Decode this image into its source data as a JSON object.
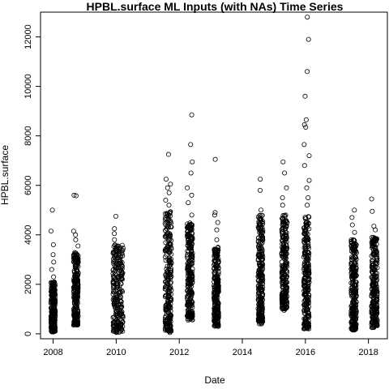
{
  "chart_data": {
    "type": "scatter",
    "title": "HPBL.surface ML Inputs (with NAs) Time Series",
    "xlabel": "Date",
    "ylabel": "HPBL.surface",
    "xlim": [
      2007.6,
      2018.6
    ],
    "ylim": [
      -200,
      13000
    ],
    "x_ticks": [
      2008,
      2010,
      2012,
      2014,
      2016,
      2018
    ],
    "x_tick_labels": [
      "2008",
      "2010",
      "2012",
      "2014",
      "2016",
      "2018"
    ],
    "y_ticks": [
      0,
      2000,
      4000,
      6000,
      8000,
      10000,
      12000
    ],
    "y_tick_labels": [
      "0",
      "2000",
      "4000",
      "6000",
      "8000",
      "10000",
      "12000"
    ],
    "grid": false,
    "marker": "open-circle",
    "point_color": "#000000",
    "clusters": [
      {
        "x_range": [
          2007.93,
          2008.07
        ],
        "y_dense": [
          80,
          2100
        ],
        "outliers": [
          2300,
          2600,
          2900,
          3200,
          3600,
          4150,
          5000
        ]
      },
      {
        "x_range": [
          2008.65,
          2008.8
        ],
        "y_dense": [
          350,
          3300
        ],
        "outliers": [
          3550,
          3800,
          4000,
          4150,
          5580,
          5600
        ]
      },
      {
        "x_range": [
          2009.9,
          2010.22
        ],
        "y_dense": [
          50,
          3600
        ],
        "outliers": [
          3800,
          4050,
          4250,
          4750
        ]
      },
      {
        "x_range": [
          2011.55,
          2011.75
        ],
        "y_dense": [
          100,
          5000
        ],
        "outliers": [
          5200,
          5400,
          5700,
          5900,
          6050,
          6250,
          7250,
          50
        ]
      },
      {
        "x_range": [
          2012.25,
          2012.42
        ],
        "y_dense": [
          550,
          4500
        ],
        "outliers": [
          4800,
          5300,
          5600,
          5900,
          6500,
          6950,
          7650,
          8850
        ]
      },
      {
        "x_range": [
          2013.1,
          2013.25
        ],
        "y_dense": [
          300,
          3500
        ],
        "outliers": [
          3800,
          4200,
          4500,
          4800,
          4900,
          7050
        ]
      },
      {
        "x_range": [
          2014.5,
          2014.65
        ],
        "y_dense": [
          400,
          4800
        ],
        "outliers": [
          5000,
          5800,
          6250
        ]
      },
      {
        "x_range": [
          2015.25,
          2015.42
        ],
        "y_dense": [
          1000,
          4800
        ],
        "outliers": [
          5200,
          5500,
          5900,
          6500,
          6950,
          950
        ]
      },
      {
        "x_range": [
          2015.95,
          2016.12
        ],
        "y_dense": [
          200,
          4800
        ],
        "outliers": [
          5200,
          5500,
          5900,
          6200,
          6800,
          7200,
          7650,
          8350,
          8450,
          8650,
          9600,
          10600,
          11900,
          12800
        ]
      },
      {
        "x_range": [
          2017.45,
          2017.62
        ],
        "y_dense": [
          150,
          3800
        ],
        "outliers": [
          4100,
          4400,
          4700,
          5000
        ]
      },
      {
        "x_range": [
          2018.1,
          2018.28
        ],
        "y_dense": [
          250,
          3900
        ],
        "outliers": [
          4200,
          4350,
          4950,
          5450
        ]
      }
    ]
  }
}
